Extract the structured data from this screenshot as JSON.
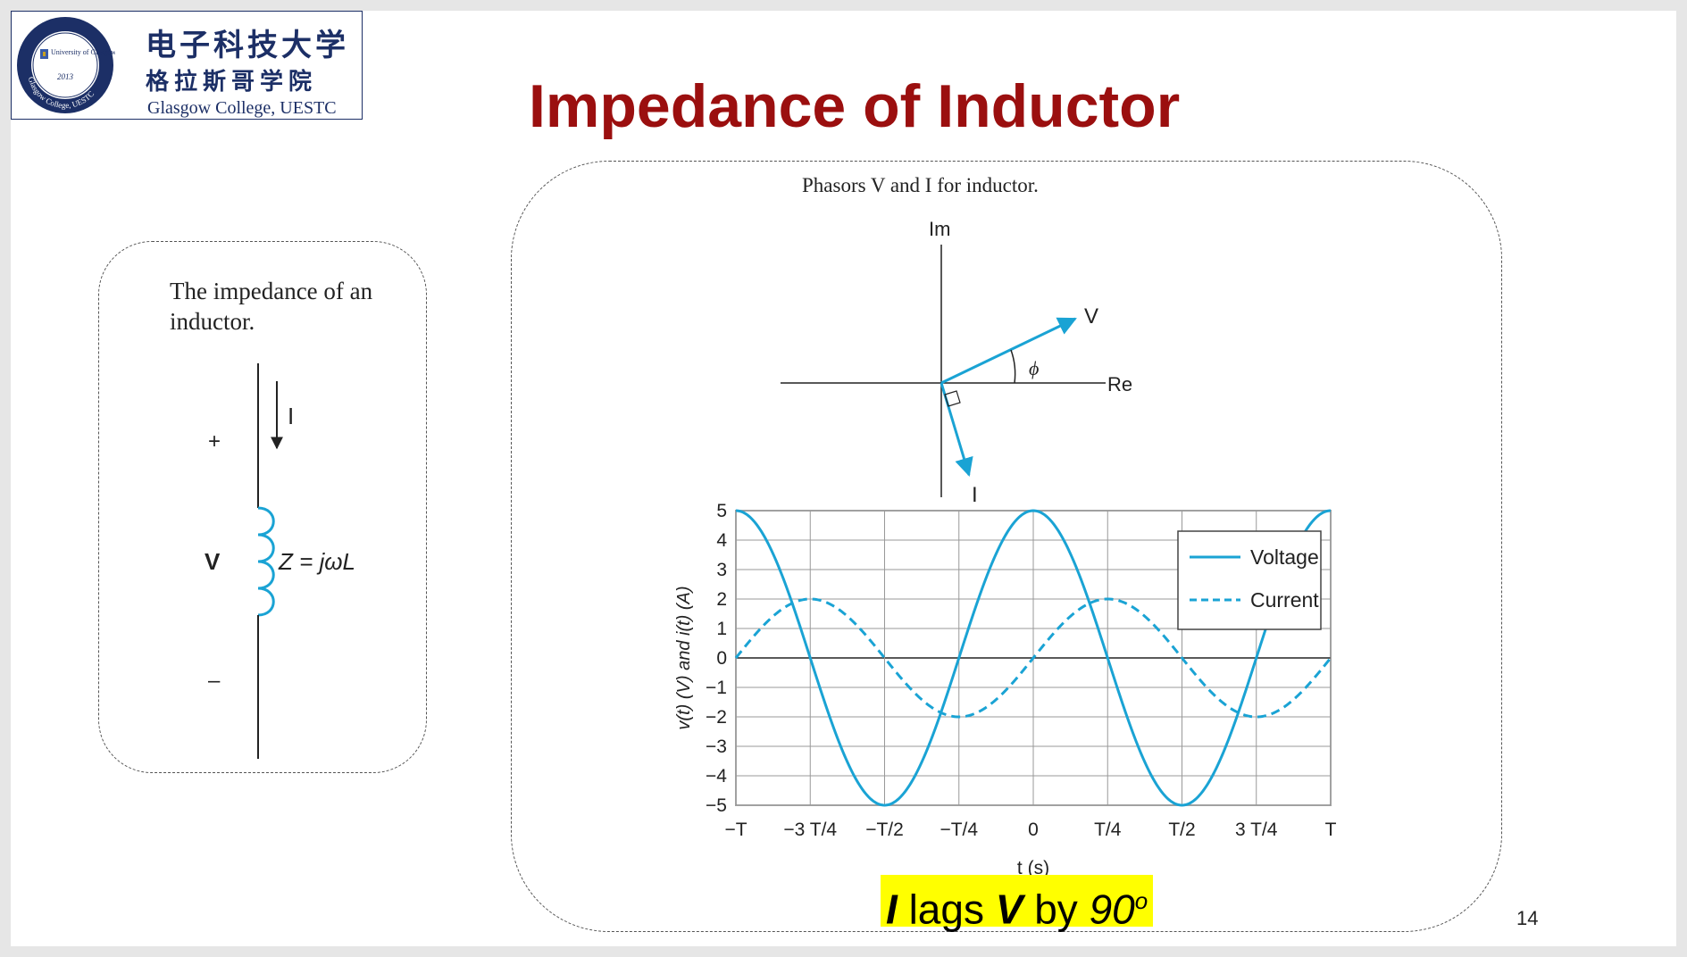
{
  "slide": {
    "title": "Impedance of Inductor",
    "page_number": "14",
    "statement": {
      "i_symbol": "I",
      "lags": "lags",
      "v_symbol": "V",
      "by": "by",
      "angle": "90",
      "degree": "o"
    }
  },
  "logo": {
    "chinese_line1": "电子科技大学",
    "chinese_line2": "格拉斯哥学院",
    "english": "Glasgow College, UESTC",
    "seal_center_text": "University of Glasgow",
    "seal_year": "2013",
    "seal_ring_text": "Glasgow College, UESTC",
    "brand_color": "#1c2f66"
  },
  "inductor_figure": {
    "caption": "The impedance of an inductor.",
    "plus_label": "+",
    "minus_label": "–",
    "current_label": "I",
    "voltage_label": "V",
    "impedance_label": "Z = jωL",
    "coil_color": "#1aa3d4"
  },
  "phasor_figure": {
    "caption": "Phasors V and I for inductor.",
    "imag_axis_label": "Im",
    "real_axis_label": "Re",
    "voltage_label": "V",
    "current_label": "I",
    "angle_label": "ϕ",
    "arrow_color": "#1aa3d4"
  },
  "chart_data": {
    "type": "line",
    "title": "",
    "xlabel": "t (s)",
    "ylabel": "v(t) (V) and i(t) (A)",
    "x_ticks": [
      "−T",
      "−3 T/4",
      "−T/2",
      "−T/4",
      "0",
      "T/4",
      "T/2",
      "3 T/4",
      "T"
    ],
    "y_ticks": [
      "5",
      "4",
      "3",
      "2",
      "1",
      "0",
      "−1",
      "−2",
      "−3",
      "−4",
      "−5"
    ],
    "ylim": [
      -5,
      5
    ],
    "xlim_periods": [
      -1,
      1
    ],
    "grid": true,
    "legend_position": "top-right",
    "series": [
      {
        "name": "Voltage",
        "style": "solid",
        "amplitude": 5,
        "phase_deg": 0,
        "color": "#1aa3d4"
      },
      {
        "name": "Current",
        "style": "dashed",
        "amplitude": 2,
        "phase_deg": -90,
        "color": "#1aa3d4"
      }
    ],
    "x_values_periods": [
      -1,
      -0.75,
      -0.5,
      -0.25,
      0,
      0.25,
      0.5,
      0.75,
      1
    ],
    "voltage_values": [
      5,
      0,
      -5,
      0,
      5,
      0,
      -5,
      0,
      5
    ],
    "current_values": [
      0,
      2,
      0,
      -2,
      0,
      2,
      0,
      -2,
      0
    ]
  }
}
